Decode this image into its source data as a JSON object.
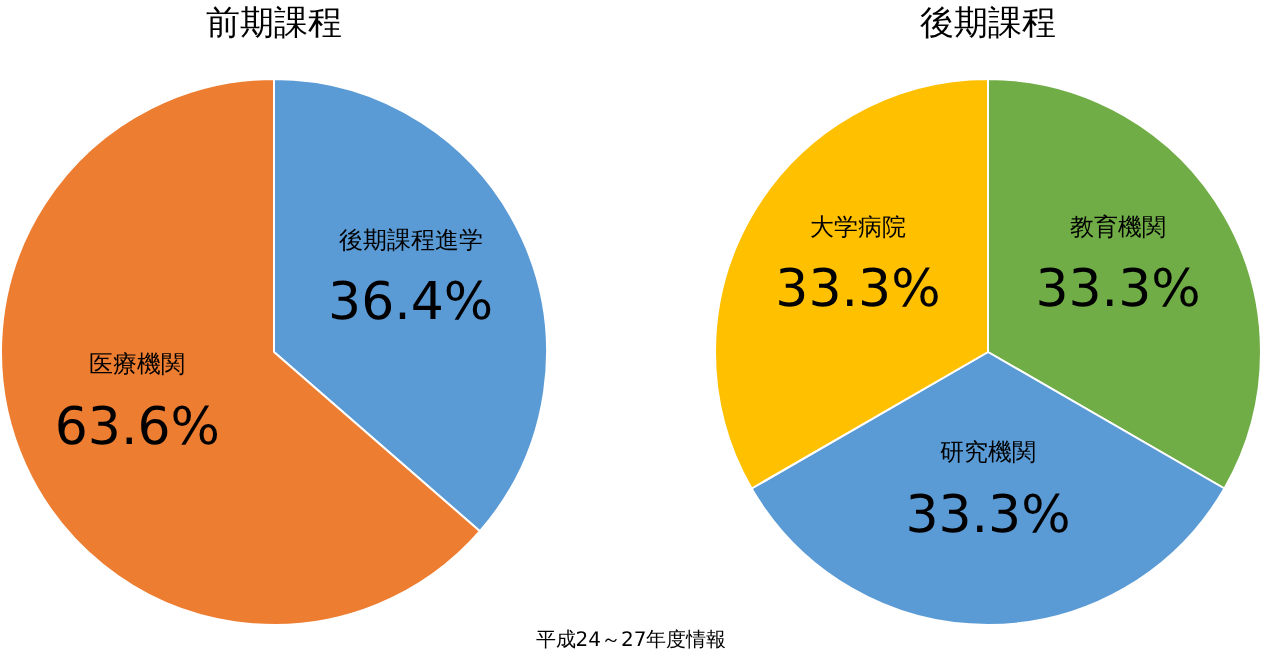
{
  "chart_data": [
    {
      "type": "pie",
      "title": "前期課程",
      "categories": [
        "後期課程進学",
        "医療機関"
      ],
      "values": [
        36.4,
        63.6
      ],
      "colors": [
        "#5b9bd5",
        "#ed7d31"
      ],
      "value_labels": [
        "36.4%",
        "63.6%"
      ],
      "legend": false,
      "annotations": [
        "平成24～27年度情報"
      ]
    },
    {
      "type": "pie",
      "title": "後期課程",
      "categories": [
        "教育機関",
        "研究機関",
        "大学病院"
      ],
      "values": [
        33.3,
        33.3,
        33.3
      ],
      "colors": [
        "#70ad47",
        "#5b9bd5",
        "#ffc000"
      ],
      "value_labels": [
        "33.3%",
        "33.3%",
        "33.3%"
      ],
      "legend": false
    }
  ]
}
